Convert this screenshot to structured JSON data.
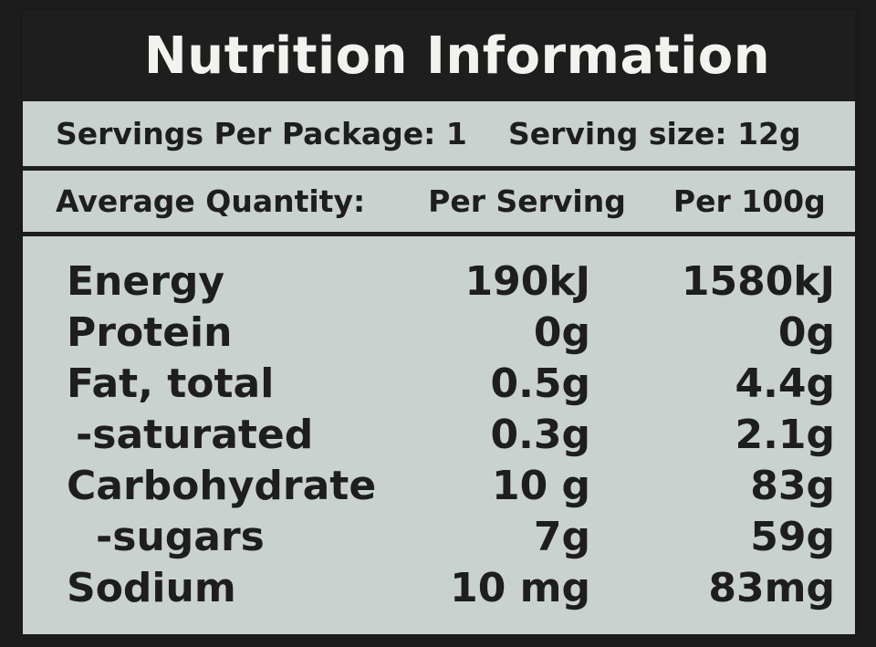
{
  "title": "Nutrition Information",
  "servings": {
    "per_package": "Servings Per Package: 1",
    "serving_size": "Serving size: 12g"
  },
  "header": {
    "average_quantity": "Average Quantity:",
    "per_serving": "Per Serving",
    "per_100g": "Per 100g"
  },
  "nutrients": [
    {
      "name": "Energy",
      "per_serving": "190kJ",
      "per_100g": "1580kJ"
    },
    {
      "name": "Protein",
      "per_serving": "0g",
      "per_100g": "0g"
    },
    {
      "name": "Fat, total",
      "per_serving": "0.5g",
      "per_100g": "4.4g"
    },
    {
      "name": "-saturated",
      "per_serving": "0.3g",
      "per_100g": "2.1g"
    },
    {
      "name": "Carbohydrate",
      "per_serving": "10 g",
      "per_100g": "83g"
    },
    {
      "name": "-sugars",
      "per_serving": "7g",
      "per_100g": "59g"
    },
    {
      "name": "Sodium",
      "per_serving": "10 mg",
      "per_100g": "83mg"
    }
  ],
  "colors": {
    "label_background": "#c9d2cf",
    "ink": "#1e1e1e",
    "title_text": "#f2f2ee"
  }
}
